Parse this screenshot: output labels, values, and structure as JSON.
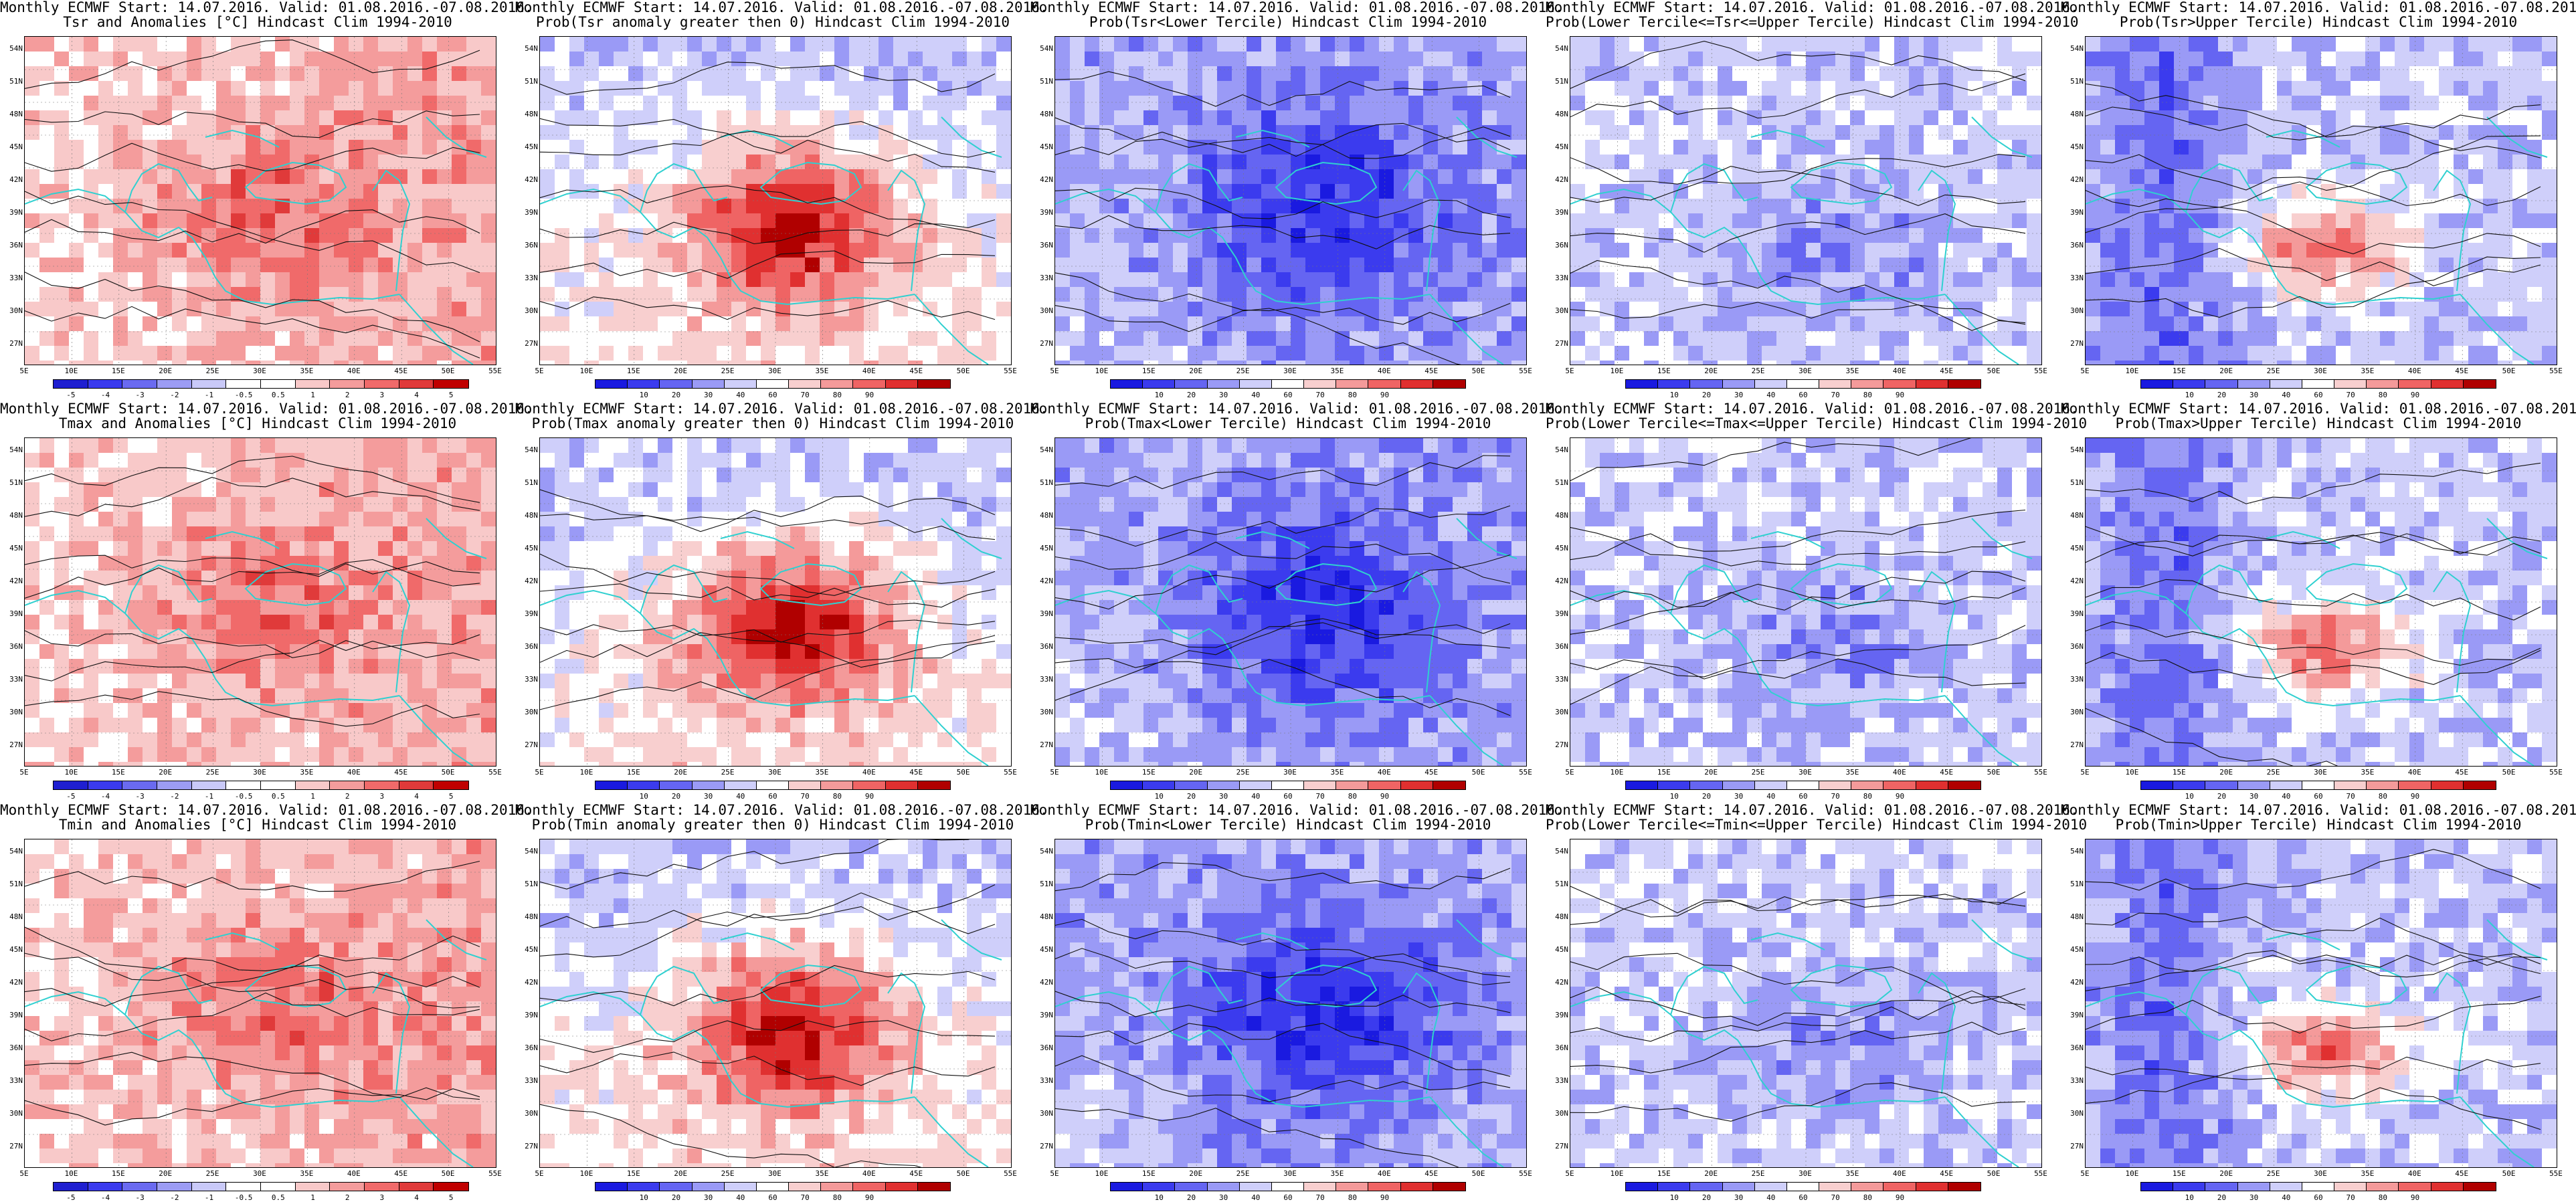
{
  "header_common": "Monthly ECMWF Start: 14.07.2016. Valid: 01.08.2016.-07.08.2016.",
  "lat_labels": [
    "54N",
    "51N",
    "48N",
    "45N",
    "42N",
    "39N",
    "36N",
    "33N",
    "30N",
    "27N"
  ],
  "lon_labels": [
    "5E",
    "10E",
    "15E",
    "20E",
    "25E",
    "30E",
    "35E",
    "40E",
    "45E",
    "50E",
    "55E"
  ],
  "anomaly_scale": {
    "labels": [
      "-5",
      "-4",
      "-3",
      "-2",
      "-1",
      "-0.5",
      "0.5",
      "1",
      "2",
      "3",
      "4",
      "5"
    ],
    "colors": [
      "#1f1fd0",
      "#3a3aee",
      "#6a6af0",
      "#9c9cf4",
      "#c9c9f8",
      "#ffffff",
      "#ffffff",
      "#f8c9c9",
      "#f49c9c",
      "#f06a6a",
      "#e03a3a",
      "#c00000"
    ]
  },
  "prob_scale": {
    "labels": [
      "10",
      "20",
      "30",
      "40",
      "60",
      "70",
      "80",
      "90"
    ],
    "colors": [
      "#1a1ae0",
      "#3b3bee",
      "#6565f2",
      "#9a9af6",
      "#cfcffa",
      "#ffffff",
      "#f8cfcf",
      "#f49a9a",
      "#ef6464",
      "#e03030",
      "#b00000"
    ]
  },
  "panels": [
    {
      "title2": "Tsr and Anomalies [°C] Hindcast Clim 1994-2010",
      "scale": "anomaly",
      "theme": "anom"
    },
    {
      "title2": "Prob(Tsr anomaly greater then 0) Hindcast Clim 1994-2010",
      "scale": "prob",
      "theme": "hot"
    },
    {
      "title2": "Prob(Tsr<Lower Tercile) Hindcast Clim 1994-2010",
      "scale": "prob",
      "theme": "cold"
    },
    {
      "title2": "Prob(Lower Tercile<=Tsr<=Upper Tercile) Hindcast Clim 1994-2010",
      "scale": "prob",
      "theme": "mid"
    },
    {
      "title2": "Prob(Tsr>Upper Tercile) Hindcast Clim 1994-2010",
      "scale": "prob",
      "theme": "mixed"
    },
    {
      "title2": "Tmax and Anomalies [°C] Hindcast Clim 1994-2010",
      "scale": "anomaly",
      "theme": "anom"
    },
    {
      "title2": "Prob(Tmax anomaly greater then 0) Hindcast Clim 1994-2010",
      "scale": "prob",
      "theme": "hot"
    },
    {
      "title2": "Prob(Tmax<Lower Tercile) Hindcast Clim 1994-2010",
      "scale": "prob",
      "theme": "cold"
    },
    {
      "title2": "Prob(Lower Tercile<=Tmax<=Upper Tercile) Hindcast Clim 1994-2010",
      "scale": "prob",
      "theme": "mid"
    },
    {
      "title2": "Prob(Tmax>Upper Tercile) Hindcast Clim 1994-2010",
      "scale": "prob",
      "theme": "mixed"
    },
    {
      "title2": "Tmin and Anomalies [°C] Hindcast Clim 1994-2010",
      "scale": "anomaly",
      "theme": "anom"
    },
    {
      "title2": "Prob(Tmin anomaly greater then 0) Hindcast Clim 1994-2010",
      "scale": "prob",
      "theme": "hot"
    },
    {
      "title2": "Prob(Tmin<Lower Tercile) Hindcast Clim 1994-2010",
      "scale": "prob",
      "theme": "cold"
    },
    {
      "title2": "Prob(Lower Tercile<=Tmin<=Upper Tercile) Hindcast Clim 1994-2010",
      "scale": "prob",
      "theme": "mid"
    },
    {
      "title2": "Prob(Tmin>Upper Tercile) Hindcast Clim 1994-2010",
      "scale": "prob",
      "theme": "mixed"
    }
  ]
}
